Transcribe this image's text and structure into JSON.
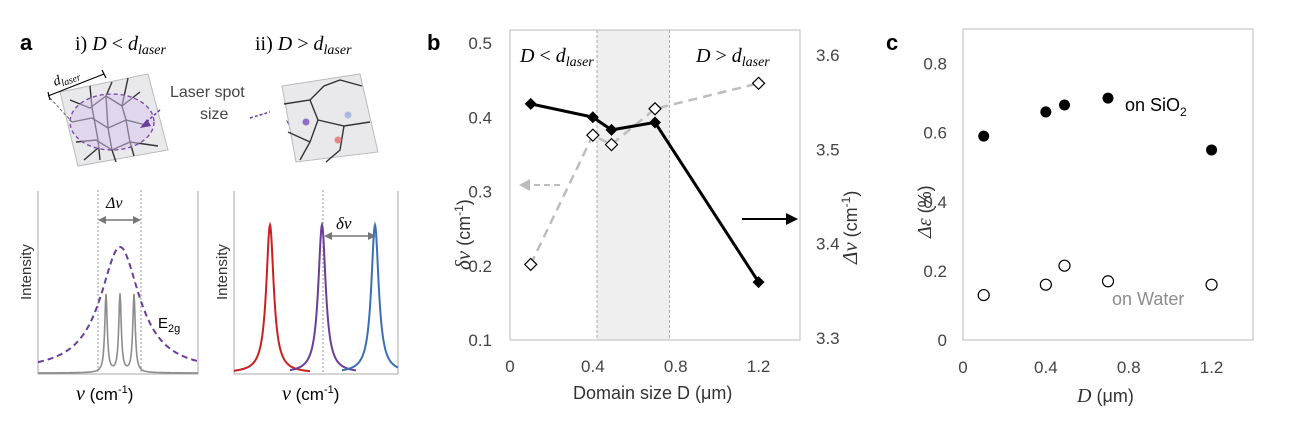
{
  "panel_a": {
    "label": "a",
    "title_left": {
      "prefix": "i)",
      "D": "D",
      "rel": "<",
      "d": "d",
      "sub": "laser"
    },
    "title_right": {
      "prefix": "ii)",
      "D": "D",
      "rel": ">",
      "d": "d",
      "sub": "laser"
    },
    "dlaser": {
      "d": "d",
      "sub": "laser"
    },
    "laser_spot_line1": "Laser spot",
    "laser_spot_line2": "size",
    "delta_nu": "Δν",
    "delta_small_nu": "δν",
    "e2g": "E",
    "e2g_sub": "2g",
    "intensity": "Intensity",
    "xaxis_nu": "ν",
    "xaxis_unit": " (cm",
    "xaxis_exp": "-1",
    "xaxis_close": ")",
    "colors": {
      "purple": "#7a4fa8",
      "gray": "#8c8c8c",
      "red": "#cc1f1f",
      "blue": "#3a6fb5",
      "violet": "#6a3d9a"
    }
  },
  "panel_b": {
    "label": "b"
  },
  "panel_c": {
    "label": "c"
  },
  "chart_data": [
    {
      "type": "line",
      "panel": "b",
      "xlabel": "Domain size D (μm)",
      "xlim": [
        0,
        1.4
      ],
      "x_ticks": [
        "0",
        "0.4",
        "0.8",
        "1.2"
      ],
      "ylim": [
        0.1,
        0.5
      ],
      "y_ticks": [
        "0.1",
        "0.2",
        "0.3",
        "0.4",
        "0.5"
      ],
      "ylabel_left": {
        "sym": "δν",
        "unit": " (cm",
        "exp": "-1",
        "close": ")"
      },
      "ylim_right": [
        3.3,
        3.6
      ],
      "y_ticks_right": [
        "3.3",
        "3.4",
        "3.5",
        "3.6"
      ],
      "ylabel_right": {
        "sym": "Δν",
        "unit": " (cm",
        "exp": "-1",
        "close": ")"
      },
      "region_label_left": {
        "D": "D",
        "rel": " < ",
        "d": "d",
        "sub": "laser"
      },
      "region_label_right": {
        "D": "D",
        "rel": " > ",
        "d": "d",
        "sub": "laser"
      },
      "shaded_region": [
        0.42,
        0.77
      ],
      "series": [
        {
          "axis": "left",
          "style": "solid black, filled diamonds",
          "x": [
            0.1,
            0.4,
            0.49,
            0.7,
            1.2
          ],
          "y": [
            0.418,
            0.4,
            0.383,
            0.393,
            0.178
          ]
        },
        {
          "axis": "right",
          "style": "dashed gray, open diamonds",
          "x": [
            0.1,
            0.4,
            0.49,
            0.7,
            1.2
          ],
          "y": [
            3.378,
            3.515,
            3.505,
            3.543,
            3.57
          ]
        }
      ],
      "colors": {
        "solid": "#000000",
        "dashed": "#bdbdbd",
        "shade": "#efefef"
      }
    },
    {
      "type": "scatter",
      "panel": "c",
      "xlabel": {
        "sym": "D",
        "unit": " (μm)"
      },
      "ylabel": {
        "sym": "Δε",
        "unit": " (%)"
      },
      "xlim": [
        0,
        1.4
      ],
      "x_ticks": [
        "0",
        "0.4",
        "0.8",
        "1.2"
      ],
      "ylim": [
        0,
        0.9
      ],
      "y_ticks": [
        "0",
        "0.2",
        "0.4",
        "0.6",
        "0.8"
      ],
      "series_labels": {
        "sio2": "on SiO",
        "sio2_sub": "2",
        "water": "on Water"
      },
      "series": [
        {
          "key": "sio2",
          "marker": "filled circle",
          "x": [
            0.1,
            0.4,
            0.49,
            0.7,
            1.2
          ],
          "y": [
            0.59,
            0.66,
            0.68,
            0.7,
            0.55
          ]
        },
        {
          "key": "water",
          "marker": "open circle",
          "x": [
            0.1,
            0.4,
            0.49,
            0.7,
            1.2
          ],
          "y": [
            0.13,
            0.16,
            0.215,
            0.17,
            0.16
          ]
        }
      ]
    }
  ]
}
